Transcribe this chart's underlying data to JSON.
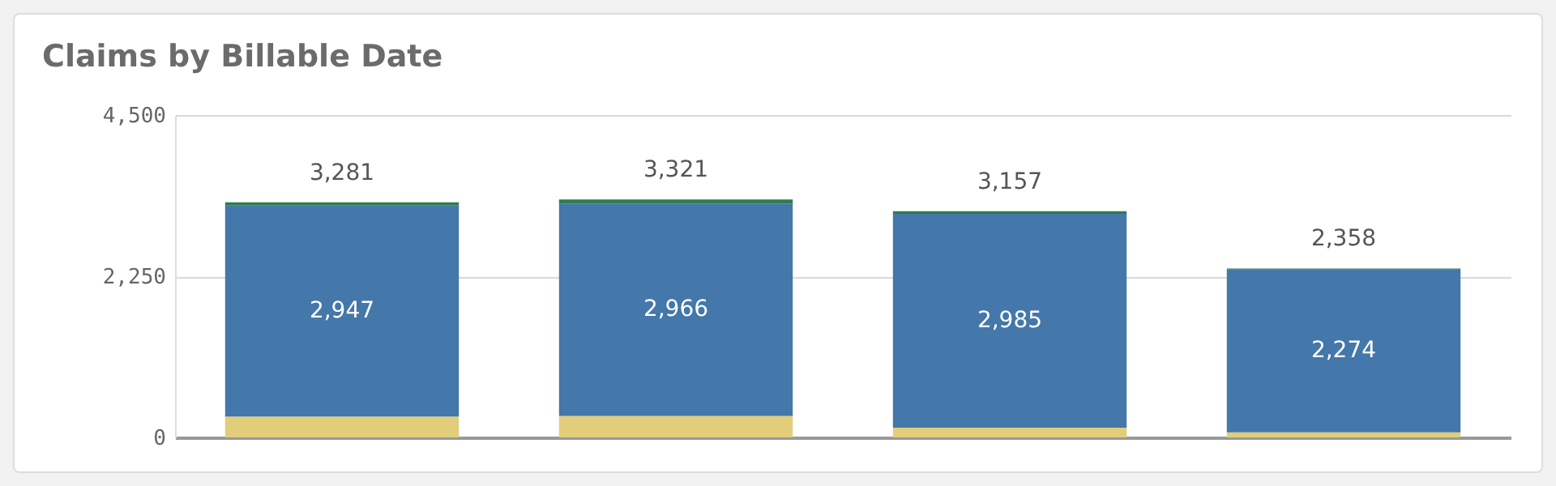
{
  "chart_data": {
    "type": "bar",
    "title": "Claims by Billable Date",
    "categories": [
      null,
      null,
      null,
      null
    ],
    "stacked": true,
    "series": [
      {
        "color": "#e2cd7a",
        "values": [
          290,
          300,
          135,
          70
        ]
      },
      {
        "color": "#4477aa",
        "values": [
          2947,
          2966,
          2985,
          2274
        ],
        "value_labels": [
          "2,947",
          "2,966",
          "2,985",
          "2,274"
        ]
      },
      {
        "color": "#2e7d4f",
        "values": [
          44,
          55,
          37,
          14
        ]
      }
    ],
    "totals": [
      "3,281",
      "3,321",
      "3,157",
      "2,358"
    ],
    "ylim": [
      0,
      4500
    ],
    "yticks": [
      0,
      {
        "value": 2250,
        "label": "2,250"
      },
      {
        "value": 4500,
        "label": "4,500"
      }
    ],
    "grid": "y",
    "legend": false
  }
}
